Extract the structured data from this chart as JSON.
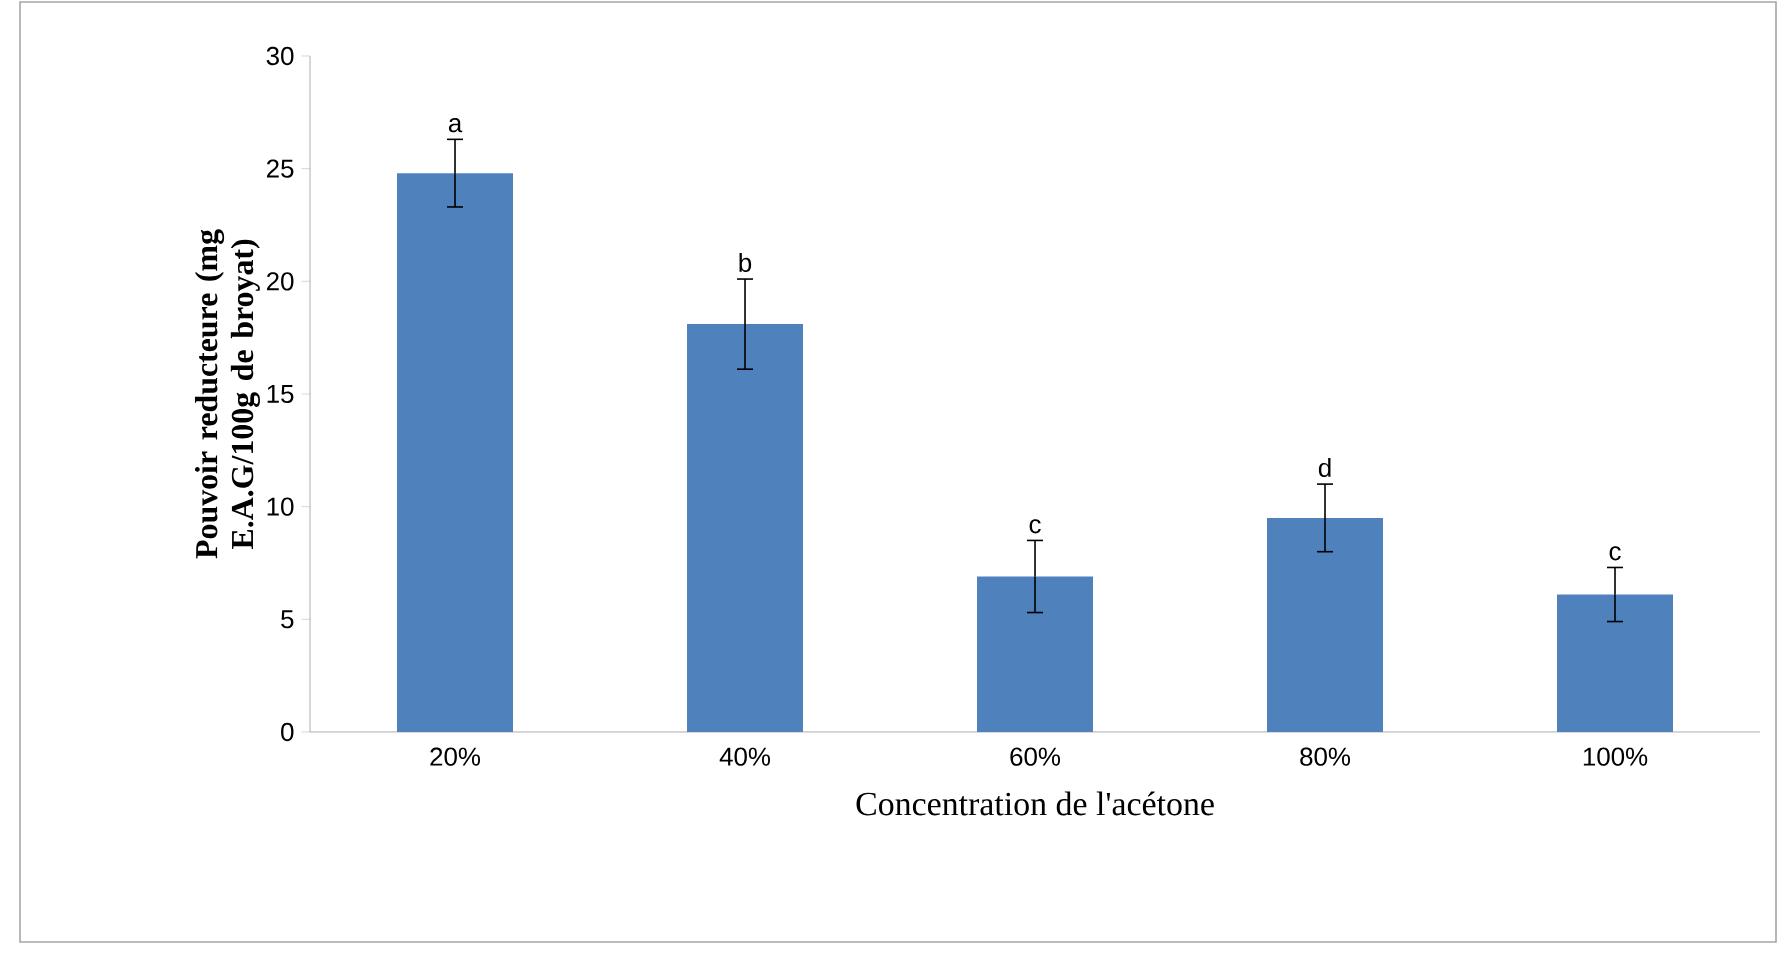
{
  "chart_data": {
    "type": "bar",
    "xlabel": "Concentration de l'acétone",
    "ylabel": "Pouvoir reducteure (mg E.A.G/100g de broyat)",
    "categories": [
      "20%",
      "40%",
      "60%",
      "80%",
      "100%"
    ],
    "values": [
      24.8,
      18.1,
      6.9,
      9.5,
      6.1
    ],
    "errors": [
      1.5,
      2.0,
      1.6,
      1.5,
      1.2
    ],
    "color": "#4f81bd",
    "ylim": [
      0,
      30
    ],
    "yticks": [
      0,
      5,
      10,
      15,
      20,
      25,
      30
    ],
    "grid": false,
    "annotations": [
      {
        "text": "a",
        "x": "20%",
        "y": 26.3
      },
      {
        "text": "b",
        "x": "40%",
        "y": 20.1
      },
      {
        "text": "c",
        "x": "60%",
        "y": 8.5
      },
      {
        "text": "d",
        "x": "80%",
        "y": 11.0
      },
      {
        "text": "c",
        "x": "100%",
        "y": 7.3
      }
    ]
  }
}
